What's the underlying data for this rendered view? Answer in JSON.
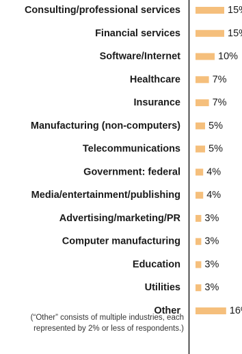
{
  "chart_data": {
    "type": "bar",
    "orientation": "horizontal",
    "categories": [
      "Consulting/professional services",
      "Financial services",
      "Software/Internet",
      "Healthcare",
      "Insurance",
      "Manufacturing (non-computers)",
      "Telecommunications",
      "Government: federal",
      "Media/entertainment/publishing",
      "Advertising/marketing/PR",
      "Computer manufacturing",
      "Education",
      "Utilities",
      "Other"
    ],
    "values": [
      15,
      15,
      10,
      7,
      7,
      5,
      5,
      4,
      4,
      3,
      3,
      3,
      3,
      16
    ],
    "value_labels": [
      "15%",
      "15%",
      "10%",
      "7%",
      "7%",
      "5%",
      "5%",
      "4%",
      "4%",
      "3%",
      "3%",
      "3%",
      "3%",
      "16%"
    ],
    "grid": false,
    "bar_color": "#f5bf7c",
    "axis_color": "#1a1a1a"
  },
  "footnote": "(“Other” consists of multiple industries, each represented by 2% or less of respondents.)"
}
